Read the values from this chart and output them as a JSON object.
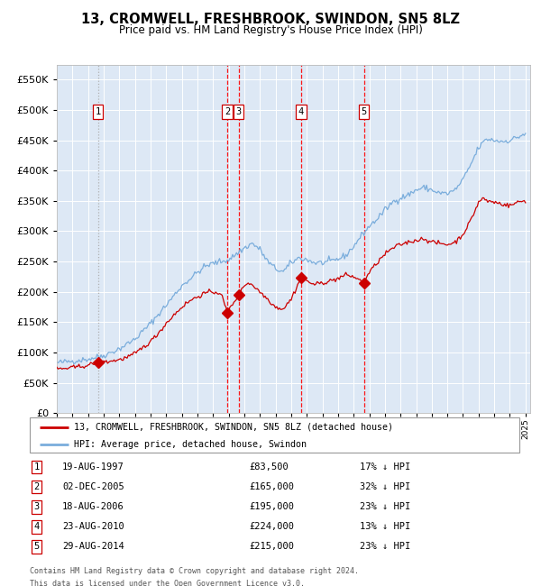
{
  "title": "13, CROMWELL, FRESHBROOK, SWINDON, SN5 8LZ",
  "subtitle": "Price paid vs. HM Land Registry's House Price Index (HPI)",
  "legend_property": "13, CROMWELL, FRESHBROOK, SWINDON, SN5 8LZ (detached house)",
  "legend_hpi": "HPI: Average price, detached house, Swindon",
  "footer_line1": "Contains HM Land Registry data © Crown copyright and database right 2024.",
  "footer_line2": "This data is licensed under the Open Government Licence v3.0.",
  "property_color": "#cc0000",
  "hpi_color": "#7aaddc",
  "background_color": "#dde8f5",
  "sale_events": [
    {
      "num": 1,
      "date": "1997-08-19",
      "price": 83500,
      "label": "19-AUG-1997",
      "pct": "17%",
      "x_year": 1997.63
    },
    {
      "num": 2,
      "date": "2005-12-02",
      "price": 165000,
      "label": "02-DEC-2005",
      "pct": "32%",
      "x_year": 2005.92
    },
    {
      "num": 3,
      "date": "2006-08-18",
      "price": 195000,
      "label": "18-AUG-2006",
      "pct": "23%",
      "x_year": 2006.63
    },
    {
      "num": 4,
      "date": "2010-08-23",
      "price": 224000,
      "label": "23-AUG-2010",
      "pct": "13%",
      "x_year": 2010.64
    },
    {
      "num": 5,
      "date": "2014-08-29",
      "price": 215000,
      "label": "29-AUG-2014",
      "pct": "23%",
      "x_year": 2014.66
    }
  ],
  "ylim": [
    0,
    575000
  ],
  "xlim_start": 1995.3,
  "xlim_end": 2025.3,
  "yticks": [
    0,
    50000,
    100000,
    150000,
    200000,
    250000,
    300000,
    350000,
    400000,
    450000,
    500000,
    550000
  ],
  "hpi_anchors": [
    [
      1995.0,
      83000
    ],
    [
      1996.0,
      86000
    ],
    [
      1997.0,
      89000
    ],
    [
      1998.0,
      95000
    ],
    [
      1999.0,
      106000
    ],
    [
      2000.0,
      122000
    ],
    [
      2001.0,
      148000
    ],
    [
      2002.0,
      178000
    ],
    [
      2003.0,
      210000
    ],
    [
      2004.0,
      232000
    ],
    [
      2004.5,
      242000
    ],
    [
      2005.0,
      247000
    ],
    [
      2005.5,
      250000
    ],
    [
      2006.0,
      253000
    ],
    [
      2007.0,
      272000
    ],
    [
      2007.5,
      280000
    ],
    [
      2008.0,
      270000
    ],
    [
      2008.5,
      250000
    ],
    [
      2009.0,
      238000
    ],
    [
      2009.5,
      233000
    ],
    [
      2010.0,
      248000
    ],
    [
      2010.5,
      256000
    ],
    [
      2011.0,
      253000
    ],
    [
      2011.5,
      248000
    ],
    [
      2012.0,
      248000
    ],
    [
      2012.5,
      250000
    ],
    [
      2013.0,
      254000
    ],
    [
      2013.5,
      260000
    ],
    [
      2014.0,
      275000
    ],
    [
      2014.5,
      293000
    ],
    [
      2015.0,
      308000
    ],
    [
      2015.5,
      320000
    ],
    [
      2016.0,
      335000
    ],
    [
      2016.5,
      348000
    ],
    [
      2017.0,
      355000
    ],
    [
      2017.5,
      360000
    ],
    [
      2018.0,
      368000
    ],
    [
      2018.5,
      372000
    ],
    [
      2019.0,
      368000
    ],
    [
      2019.5,
      363000
    ],
    [
      2020.0,
      362000
    ],
    [
      2020.5,
      368000
    ],
    [
      2021.0,
      385000
    ],
    [
      2021.5,
      410000
    ],
    [
      2022.0,
      438000
    ],
    [
      2022.5,
      452000
    ],
    [
      2023.0,
      450000
    ],
    [
      2023.5,
      448000
    ],
    [
      2024.0,
      450000
    ],
    [
      2024.5,
      455000
    ],
    [
      2024.9,
      460000
    ]
  ],
  "prop_anchors": [
    [
      1995.0,
      73000
    ],
    [
      1995.5,
      73500
    ],
    [
      1996.0,
      75000
    ],
    [
      1996.5,
      77000
    ],
    [
      1997.0,
      79000
    ],
    [
      1997.63,
      83500
    ],
    [
      1998.0,
      84000
    ],
    [
      1998.5,
      86000
    ],
    [
      1999.0,
      88000
    ],
    [
      1999.5,
      92000
    ],
    [
      2000.0,
      98000
    ],
    [
      2000.5,
      108000
    ],
    [
      2001.0,
      118000
    ],
    [
      2001.5,
      132000
    ],
    [
      2002.0,
      148000
    ],
    [
      2002.5,
      162000
    ],
    [
      2003.0,
      175000
    ],
    [
      2003.5,
      185000
    ],
    [
      2004.0,
      192000
    ],
    [
      2004.5,
      198000
    ],
    [
      2005.0,
      200000
    ],
    [
      2005.5,
      198000
    ],
    [
      2005.92,
      165000
    ],
    [
      2006.2,
      178000
    ],
    [
      2006.63,
      195000
    ],
    [
      2006.9,
      208000
    ],
    [
      2007.2,
      215000
    ],
    [
      2007.5,
      212000
    ],
    [
      2008.0,
      200000
    ],
    [
      2008.5,
      188000
    ],
    [
      2009.0,
      175000
    ],
    [
      2009.5,
      172000
    ],
    [
      2010.0,
      188000
    ],
    [
      2010.64,
      224000
    ],
    [
      2011.0,
      218000
    ],
    [
      2011.5,
      212000
    ],
    [
      2012.0,
      215000
    ],
    [
      2012.5,
      218000
    ],
    [
      2013.0,
      222000
    ],
    [
      2013.5,
      228000
    ],
    [
      2014.0,
      225000
    ],
    [
      2014.66,
      215000
    ],
    [
      2015.0,
      232000
    ],
    [
      2015.5,
      248000
    ],
    [
      2016.0,
      262000
    ],
    [
      2016.5,
      272000
    ],
    [
      2017.0,
      278000
    ],
    [
      2017.5,
      282000
    ],
    [
      2018.0,
      285000
    ],
    [
      2018.5,
      288000
    ],
    [
      2019.0,
      282000
    ],
    [
      2019.5,
      280000
    ],
    [
      2020.0,
      278000
    ],
    [
      2020.5,
      282000
    ],
    [
      2021.0,
      295000
    ],
    [
      2021.5,
      318000
    ],
    [
      2022.0,
      348000
    ],
    [
      2022.3,
      355000
    ],
    [
      2022.5,
      350000
    ],
    [
      2023.0,
      348000
    ],
    [
      2023.5,
      345000
    ],
    [
      2024.0,
      342000
    ],
    [
      2024.5,
      348000
    ],
    [
      2024.9,
      350000
    ]
  ]
}
